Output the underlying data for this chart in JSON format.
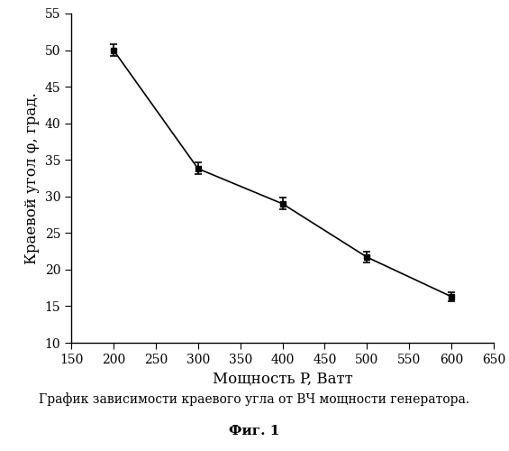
{
  "x": [
    200,
    300,
    400,
    500,
    600
  ],
  "y": [
    50.0,
    33.8,
    29.0,
    21.7,
    16.3
  ],
  "yerr": [
    0.8,
    0.8,
    0.8,
    0.7,
    0.6
  ],
  "xlabel": "Мощность P, Ватт",
  "ylabel": "Краевой угол φ, град.",
  "xlim": [
    150,
    650
  ],
  "ylim": [
    10,
    55
  ],
  "xticks": [
    150,
    200,
    250,
    300,
    350,
    400,
    450,
    500,
    550,
    600,
    650
  ],
  "yticks": [
    10,
    15,
    20,
    25,
    30,
    35,
    40,
    45,
    50,
    55
  ],
  "caption_line1": "График зависимости краевого угла от ВЧ мощности генератора.",
  "caption_line2": "Фиг. 1",
  "line_color": "#000000",
  "marker_color": "#000000",
  "background_color": "#ffffff",
  "font_size_labels": 12,
  "font_size_ticks": 10,
  "font_size_caption": 10,
  "font_size_fig": 11
}
